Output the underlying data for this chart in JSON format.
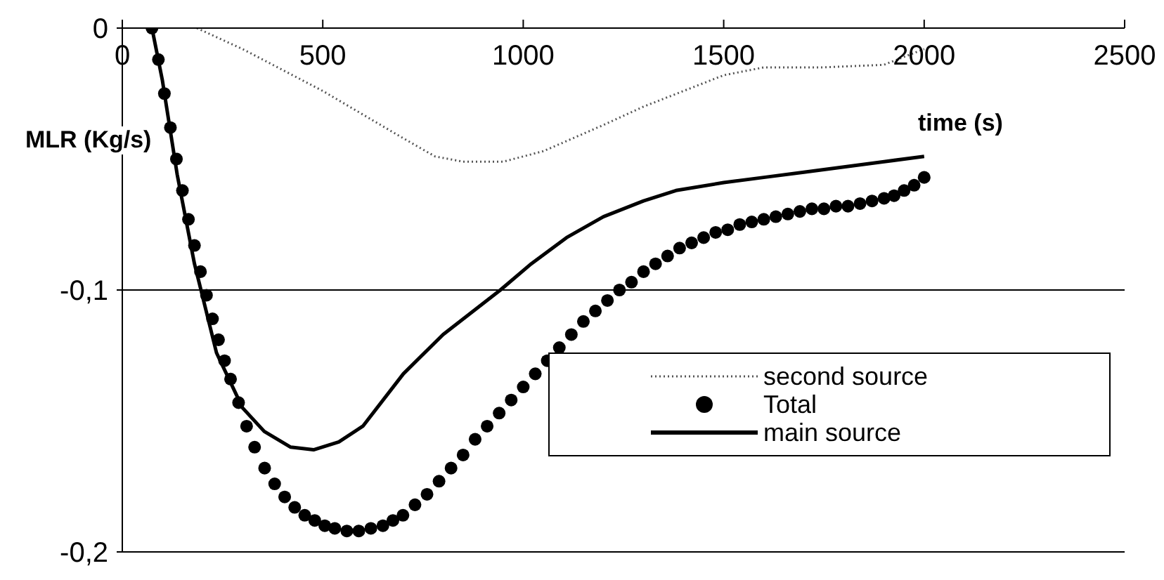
{
  "chart_data": {
    "type": "line",
    "annotations": [
      "time (s)"
    ],
    "ylabel": "MLR (Kg/s)",
    "xlim": [
      0,
      2500
    ],
    "xticks": [
      0,
      500,
      1000,
      1500,
      2000,
      2500
    ],
    "ylim": [
      -0.2,
      0
    ],
    "yticks": [
      {
        "value": 0,
        "label": "0"
      },
      {
        "value": -0.1,
        "label": "-0,1"
      },
      {
        "value": -0.2,
        "label": "-0,2"
      }
    ],
    "grid": "y",
    "legend": "bottom right",
    "series": [
      {
        "name": "second source",
        "line_style": "dotted",
        "marker": "none",
        "color": "#555555",
        "x": [
          186,
          300,
          400,
          500,
          600,
          700,
          780,
          850,
          950,
          1050,
          1200,
          1300,
          1400,
          1500,
          1600,
          1750,
          1900,
          2000
        ],
        "values": [
          0,
          -0.008,
          -0.016,
          -0.024,
          -0.033,
          -0.042,
          -0.049,
          -0.051,
          -0.051,
          -0.047,
          -0.037,
          -0.03,
          -0.024,
          -0.018,
          -0.015,
          -0.015,
          -0.014,
          -0.008
        ]
      },
      {
        "name": "Total",
        "type": "scatter",
        "marker": "circle",
        "color": "#000000",
        "x": [
          74,
          90,
          105,
          120,
          135,
          150,
          165,
          180,
          195,
          210,
          225,
          240,
          255,
          270,
          290,
          310,
          330,
          355,
          380,
          405,
          430,
          455,
          480,
          505,
          530,
          560,
          590,
          620,
          650,
          675,
          700,
          730,
          760,
          790,
          820,
          850,
          880,
          910,
          940,
          970,
          1000,
          1030,
          1060,
          1090,
          1120,
          1150,
          1180,
          1210,
          1240,
          1270,
          1300,
          1330,
          1360,
          1390,
          1420,
          1450,
          1480,
          1510,
          1540,
          1570,
          1600,
          1630,
          1660,
          1690,
          1720,
          1750,
          1780,
          1810,
          1840,
          1870,
          1900,
          1925,
          1950,
          1975,
          2000
        ],
        "values": [
          0,
          -0.012,
          -0.025,
          -0.038,
          -0.05,
          -0.062,
          -0.073,
          -0.083,
          -0.093,
          -0.102,
          -0.111,
          -0.119,
          -0.127,
          -0.134,
          -0.143,
          -0.152,
          -0.16,
          -0.168,
          -0.174,
          -0.179,
          -0.183,
          -0.186,
          -0.188,
          -0.19,
          -0.191,
          -0.192,
          -0.192,
          -0.191,
          -0.19,
          -0.188,
          -0.186,
          -0.182,
          -0.178,
          -0.173,
          -0.168,
          -0.163,
          -0.157,
          -0.152,
          -0.147,
          -0.142,
          -0.137,
          -0.132,
          -0.127,
          -0.122,
          -0.117,
          -0.112,
          -0.108,
          -0.104,
          -0.1,
          -0.097,
          -0.093,
          -0.09,
          -0.087,
          -0.084,
          -0.082,
          -0.08,
          -0.078,
          -0.077,
          -0.075,
          -0.074,
          -0.073,
          -0.072,
          -0.071,
          -0.07,
          -0.069,
          -0.069,
          -0.068,
          -0.068,
          -0.067,
          -0.066,
          -0.065,
          -0.064,
          -0.062,
          -0.06,
          -0.057
        ]
      },
      {
        "name": "main source",
        "line_style": "solid",
        "marker": "none",
        "color": "#000000",
        "x": [
          74,
          100,
          137,
          180,
          235,
          300,
          354,
          420,
          477,
          540,
          600,
          701,
          800,
          943,
          1020,
          1108,
          1200,
          1300,
          1381,
          1500,
          1600,
          1700,
          1800,
          1900,
          2000
        ],
        "values": [
          0,
          -0.02,
          -0.056,
          -0.09,
          -0.124,
          -0.145,
          -0.154,
          -0.16,
          -0.161,
          -0.158,
          -0.152,
          -0.132,
          -0.117,
          -0.1,
          -0.09,
          -0.08,
          -0.072,
          -0.066,
          -0.062,
          -0.059,
          -0.057,
          -0.055,
          -0.053,
          -0.051,
          -0.049
        ]
      }
    ]
  }
}
